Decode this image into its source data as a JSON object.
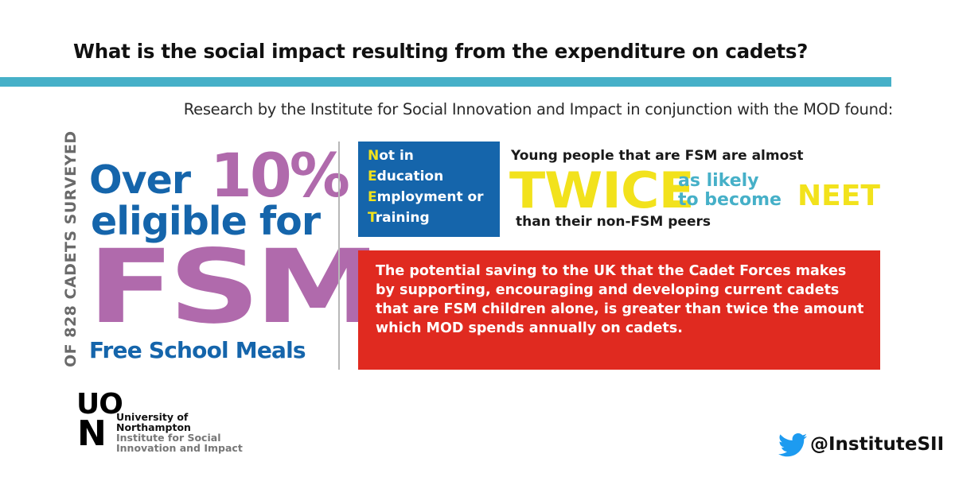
{
  "header": {
    "title": "What is the social impact resulting from the expenditure on cadets?",
    "subtitle": "Research by the Institute for Social Innovation and Impact in conjunction with the MOD found:"
  },
  "fsm_panel": {
    "side_caption": "OF 828 CADETS SURVEYED",
    "over": "Over",
    "percent": "10%",
    "eligible": "eligible for",
    "fsm": "FSM",
    "fsm_full": "Free School Meals"
  },
  "neet_box": {
    "lines": [
      {
        "initial": "N",
        "rest": "ot in"
      },
      {
        "initial": "E",
        "rest": "ducation"
      },
      {
        "initial": "E",
        "rest": "mployment or"
      },
      {
        "initial": "T",
        "rest": "raining"
      }
    ]
  },
  "twice_panel": {
    "lead": "Young people that are FSM are almost",
    "twice": "TWICE",
    "likely_line1": "as likely",
    "likely_line2": "to become",
    "neet": "NEET",
    "tail": "than their non-FSM peers"
  },
  "saving_box": {
    "text": "The potential saving to the UK that the Cadet Forces makes by supporting, encouraging and developing current cadets that are FSM children alone, is greater than twice the amount which MOD spends annually on cadets."
  },
  "logo": {
    "mark_top": "UO",
    "mark_bottom": "N",
    "university_line1": "University of",
    "university_line2": "Northampton",
    "institute_line1": "Institute for Social",
    "institute_line2": "Innovation and Impact"
  },
  "social": {
    "icon": "twitter-bird-icon",
    "handle": "@InstituteSII"
  },
  "colors": {
    "accent_teal": "#46b0c8",
    "blue": "#1565ab",
    "purple": "#b06aac",
    "yellow": "#f2e21c",
    "red": "#e02a20"
  }
}
